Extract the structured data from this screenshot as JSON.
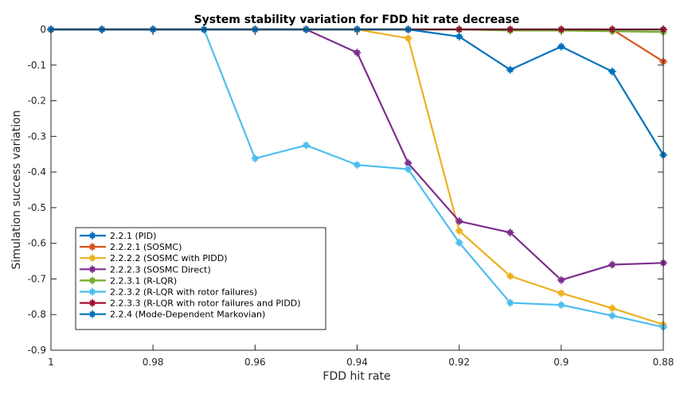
{
  "chart_data": {
    "type": "line",
    "title": "System stability variation for FDD hit rate decrease",
    "xlabel": "FDD hit rate",
    "ylabel": "Simulation success variation",
    "xlim": [
      1,
      0.88
    ],
    "ylim": [
      -0.9,
      0
    ],
    "x_reversed": true,
    "xticks": [
      1,
      0.98,
      0.96,
      0.94,
      0.92,
      0.9,
      0.88
    ],
    "xtick_labels": [
      "1",
      "0.98",
      "0.96",
      "0.94",
      "0.92",
      "0.9",
      "0.88"
    ],
    "yticks": [
      0,
      -0.1,
      -0.2,
      -0.3,
      -0.4,
      -0.5,
      -0.6,
      -0.7,
      -0.8,
      -0.9
    ],
    "ytick_labels": [
      "0",
      "-0.1",
      "-0.2",
      "-0.3",
      "-0.4",
      "-0.5",
      "-0.6",
      "-0.7",
      "-0.8",
      "-0.9"
    ],
    "grid": false,
    "legend_position": "bottom-left",
    "x": [
      1,
      0.99,
      0.98,
      0.97,
      0.96,
      0.95,
      0.94,
      0.93,
      0.92,
      0.91,
      0.9,
      0.89,
      0.88
    ],
    "series": [
      {
        "name": "2.2.1 (PID)",
        "color": "#0072BD",
        "values": [
          0,
          0,
          0,
          0,
          0,
          0,
          0,
          0,
          0,
          0,
          0,
          0,
          0
        ]
      },
      {
        "name": "2.2.2.1 (SOSMC)",
        "color": "#D95319",
        "values": [
          0,
          0,
          0,
          0,
          0,
          0,
          0,
          0,
          0,
          0,
          0,
          0,
          -0.09
        ]
      },
      {
        "name": "2.2.2.2 (SOSMC with PIDD)",
        "color": "#EDB120",
        "values": [
          0,
          0,
          0,
          0,
          0,
          0,
          0,
          -0.025,
          -0.565,
          -0.692,
          -0.74,
          -0.782,
          -0.828
        ]
      },
      {
        "name": "2.2.2.3 (SOSMC Direct)",
        "color": "#7E2F8E",
        "values": [
          0,
          0,
          0,
          0,
          0,
          0,
          -0.065,
          -0.375,
          -0.538,
          -0.57,
          -0.703,
          -0.66,
          -0.655
        ]
      },
      {
        "name": "2.2.3.1 (R-LQR)",
        "color": "#77AC30",
        "values": [
          0,
          0,
          0,
          0,
          0,
          0,
          0,
          0,
          0,
          -0.003,
          -0.003,
          -0.005,
          -0.007
        ]
      },
      {
        "name": "2.2.3.2 (R-LQR with rotor failures)",
        "color": "#4DBEEE",
        "values": [
          0,
          0,
          0,
          0,
          -0.362,
          -0.325,
          -0.38,
          -0.392,
          -0.598,
          -0.767,
          -0.773,
          -0.803,
          -0.835
        ]
      },
      {
        "name": "2.2.3.3 (R-LQR with rotor failures and PIDD)",
        "color": "#A2142F",
        "values": [
          0,
          0,
          0,
          0,
          0,
          0,
          0,
          0,
          0,
          0,
          0,
          0,
          0
        ]
      },
      {
        "name": "2.2.4 (Mode-Dependent Markovian)",
        "color": "#0072BD",
        "values": [
          0,
          0,
          0,
          0,
          0,
          0,
          0,
          0,
          -0.02,
          -0.113,
          -0.048,
          -0.118,
          -0.352
        ]
      }
    ]
  }
}
